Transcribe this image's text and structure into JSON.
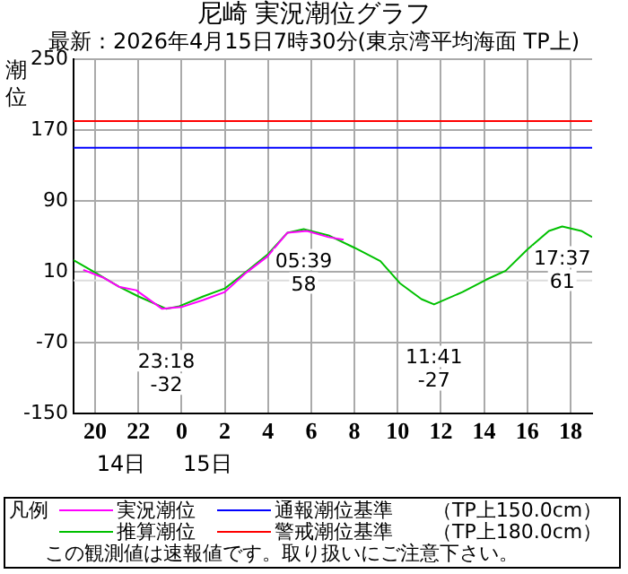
{
  "chart_data": {
    "type": "line",
    "title": "尼崎 実況潮位グラフ",
    "subtitle": "最新：2026年4月15日7時30分(東京湾平均海面 TP上)",
    "ylabel": "潮位",
    "legend_title": "凡例",
    "legend": "bottom",
    "grid": true,
    "marker": "none",
    "line_style": "solid",
    "xlim": [
      "2026-04-14T19:00",
      "2026-04-15T19:00"
    ],
    "xticks": [
      {
        "value": "2026-04-14T20:00",
        "label": "20"
      },
      {
        "value": "2026-04-14T22:00",
        "label": "22"
      },
      {
        "value": "2026-04-15T00:00",
        "label": "0"
      },
      {
        "value": "2026-04-15T02:00",
        "label": "2"
      },
      {
        "value": "2026-04-15T04:00",
        "label": "4"
      },
      {
        "value": "2026-04-15T06:00",
        "label": "6"
      },
      {
        "value": "2026-04-15T08:00",
        "label": "8"
      },
      {
        "value": "2026-04-15T10:00",
        "label": "10"
      },
      {
        "value": "2026-04-15T12:00",
        "label": "12"
      },
      {
        "value": "2026-04-15T14:00",
        "label": "14"
      },
      {
        "value": "2026-04-15T16:00",
        "label": "16"
      },
      {
        "value": "2026-04-15T18:00",
        "label": "18"
      }
    ],
    "ylim": [
      -150,
      250
    ],
    "yticks": [
      -150,
      -70,
      10,
      90,
      170,
      250
    ],
    "series": [
      {
        "name": "実況潮位",
        "color": "#ff00ff",
        "x": [
          "2026-04-14T19:27",
          "2026-04-14T20:24",
          "2026-04-14T21:06",
          "2026-04-14T21:54",
          "2026-04-14T23:06",
          "2026-04-15T00:00",
          "2026-04-15T01:00",
          "2026-04-15T02:00",
          "2026-04-15T03:00",
          "2026-04-15T03:58",
          "2026-04-15T04:54",
          "2026-04-15T05:48",
          "2026-04-15T06:48",
          "2026-04-15T07:30"
        ],
        "values": [
          12,
          3,
          -7,
          -11,
          -32,
          -30,
          -22,
          -13,
          9,
          27,
          54,
          56,
          49,
          46
        ]
      },
      {
        "name": "推算潮位",
        "color": "#00c000",
        "x": [
          "2026-04-14T19:00",
          "2026-04-14T20:00",
          "2026-04-14T21:06",
          "2026-04-14T22:00",
          "2026-04-14T23:18",
          "2026-04-14T23:54",
          "2026-04-15T01:00",
          "2026-04-15T02:00",
          "2026-04-15T03:00",
          "2026-04-15T03:58",
          "2026-04-15T04:54",
          "2026-04-15T05:39",
          "2026-04-15T06:48",
          "2026-04-15T08:00",
          "2026-04-15T09:12",
          "2026-04-15T10:06",
          "2026-04-15T11:06",
          "2026-04-15T11:41",
          "2026-04-15T13:00",
          "2026-04-15T14:06",
          "2026-04-15T15:00",
          "2026-04-15T16:00",
          "2026-04-15T17:00",
          "2026-04-15T17:37",
          "2026-04-15T18:30",
          "2026-04-15T19:00"
        ],
        "values": [
          23,
          9,
          -7,
          -18,
          -32,
          -29,
          -18,
          -9,
          10,
          29,
          54,
          58,
          51,
          37,
          22,
          -3,
          -21,
          -27,
          -13,
          1,
          11,
          35,
          56,
          61,
          56,
          49
        ]
      }
    ],
    "ref_lines": [
      {
        "axis": "y",
        "value": 180,
        "label": "警戒潮位基準　　（TP上180.0cm）",
        "color": "#ff0000"
      },
      {
        "axis": "y",
        "value": 150,
        "label": "通報潮位基準　　（TP上150.0cm）",
        "color": "#0000ff"
      },
      {
        "axis": "y",
        "value": 0,
        "color": "#dddddd"
      }
    ],
    "annotations": [
      {
        "text": "23:18\n-32",
        "x": "2026-04-14T23:18",
        "y": -32
      },
      {
        "text": "05:39\n58",
        "x": "2026-04-15T05:39",
        "y": 58
      },
      {
        "text": "11:41\n-27",
        "x": "2026-04-15T11:41",
        "y": -27
      },
      {
        "text": "17:37\n61",
        "x": "2026-04-15T17:37",
        "y": 61
      },
      "14日",
      "15日",
      "この観測値は速報値です。取り扱いにご注意下さい。"
    ]
  }
}
